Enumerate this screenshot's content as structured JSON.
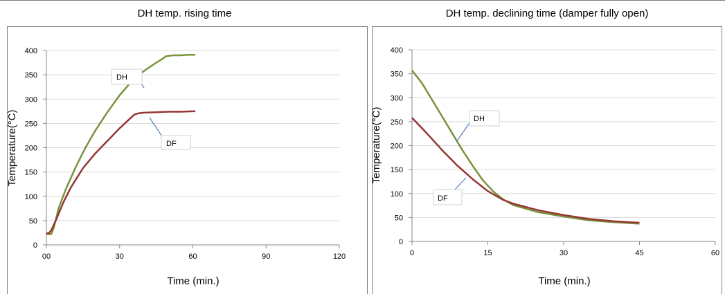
{
  "charts": [
    {
      "title": "DH temp. rising time",
      "chart_data": {
        "type": "line",
        "title": "DH temp. rising time",
        "xlabel": "Time (min.)",
        "ylabel": "Temperature(°C)",
        "xlim": [
          0,
          120
        ],
        "ylim": [
          0,
          400
        ],
        "xticks": [
          0,
          30,
          60,
          90,
          120
        ],
        "xtick_labels": [
          "00",
          "30",
          "60",
          "90",
          "120"
        ],
        "yticks": [
          0,
          50,
          100,
          150,
          200,
          250,
          300,
          350,
          400
        ],
        "grid": "horizontal",
        "series": [
          {
            "name": "DH",
            "color": "#77933c",
            "x": [
              0,
              2,
              3,
              5,
              8,
              12,
              16,
              20,
              25,
              30,
              35,
              40,
              45,
              47,
              49,
              50,
              52,
              55,
              58,
              61
            ],
            "y": [
              22,
              22,
              35,
              75,
              115,
              160,
              200,
              235,
              273,
              308,
              337,
              358,
              375,
              381,
              388,
              389,
              390,
              390,
              391,
              391
            ]
          },
          {
            "name": "DF",
            "color": "#943634",
            "x": [
              0,
              1,
              2,
              4,
              7,
              10,
              15,
              20,
              25,
              30,
              33,
              36,
              38,
              40,
              45,
              50,
              55,
              61
            ],
            "y": [
              24,
              24,
              30,
              52,
              88,
              118,
              158,
              188,
              214,
              240,
              254,
              268,
              271,
              272,
              273,
              274,
              274,
              275
            ]
          }
        ],
        "annotations": [
          {
            "text": "DH",
            "series": "DH"
          },
          {
            "text": "DF",
            "series": "DF"
          }
        ]
      }
    },
    {
      "title": "DH temp. declining time (damper fully open)",
      "chart_data": {
        "type": "line",
        "title": "DH temp. declining time (damper fully open)",
        "xlabel": "Time (min.)",
        "ylabel": "Temperature(°C)",
        "xlim": [
          0,
          60
        ],
        "ylim": [
          0,
          400
        ],
        "xticks": [
          0,
          15,
          30,
          45,
          60
        ],
        "xtick_labels": [
          "0",
          "15",
          "30",
          "45",
          "60"
        ],
        "yticks": [
          0,
          50,
          100,
          150,
          200,
          250,
          300,
          350,
          400
        ],
        "grid": "horizontal",
        "series": [
          {
            "name": "DH",
            "color": "#77933c",
            "x": [
              0,
              2,
              4,
              6,
              8,
              10,
              12,
              14,
              16,
              18,
              20,
              25,
              30,
              35,
              40,
              45
            ],
            "y": [
              357,
              330,
              295,
              260,
              225,
              190,
              158,
              128,
              105,
              88,
              76,
              61,
              52,
              44,
              40,
              37
            ]
          },
          {
            "name": "DF",
            "color": "#943634",
            "x": [
              0,
              3,
              6,
              9,
              12,
              15,
              18,
              20,
              25,
              30,
              35,
              40,
              45
            ],
            "y": [
              258,
              225,
              190,
              158,
              130,
              105,
              87,
              79,
              65,
              55,
              47,
              42,
              39
            ]
          }
        ],
        "annotations": [
          {
            "text": "DH",
            "series": "DH"
          },
          {
            "text": "DF",
            "series": "DF"
          }
        ]
      }
    }
  ]
}
